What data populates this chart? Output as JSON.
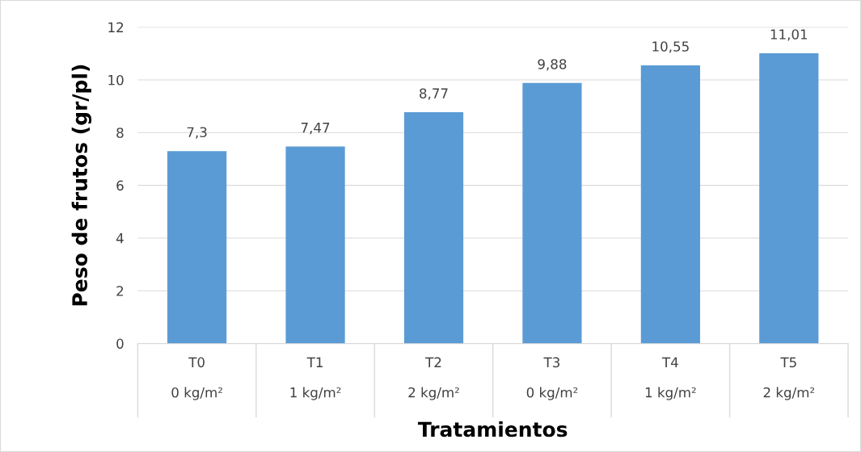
{
  "chart_data": {
    "type": "bar",
    "categories": [
      "T0\n\n0 kg/m²",
      "T1\n\n1 kg/m²",
      "T2\n\n2 kg/m²",
      "T3\n\n0 kg/m²",
      "T4\n\n1 kg/m²",
      "T5\n\n2 kg/m²"
    ],
    "values": [
      7.3,
      7.47,
      8.77,
      9.88,
      10.55,
      11.01
    ],
    "value_labels": [
      "7,3",
      "7,47",
      "8,77",
      "9,88",
      "10,55",
      "11,01"
    ],
    "color": "#5b9bd5",
    "xlabel": "Tratamientos",
    "ylabel": "Peso de frutos (gr/pl)",
    "ylim": [
      0,
      12
    ],
    "yticks": [
      0,
      2,
      4,
      6,
      8,
      10,
      12
    ],
    "grid": "y",
    "legend": false
  }
}
